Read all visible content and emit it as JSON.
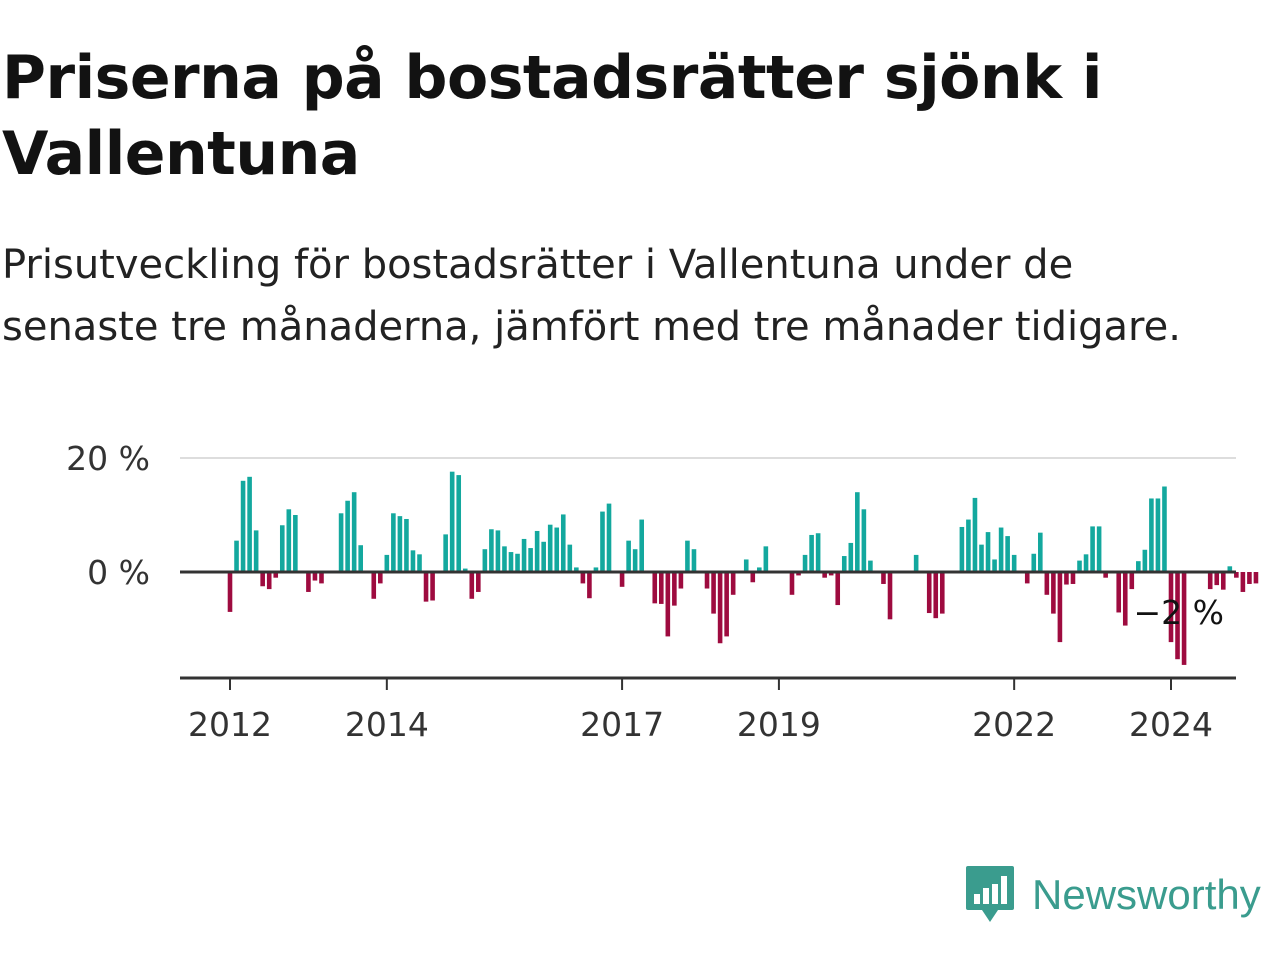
{
  "title": "Priserna på bostadsrätter sjönk i Vallentuna",
  "subtitle": "Prisutveckling för bostadsrätter i Vallentuna under de senaste tre månaderna, jämfört med tre månader tidigare.",
  "logo": {
    "text": "Newsworthy",
    "icon": "newsworthy-logo-icon",
    "color": "#3a9c8e"
  },
  "colors": {
    "positive": "#13a89e",
    "negative": "#9e0b3f",
    "axis": "#333333",
    "grid": "#dddddd"
  },
  "chart_data": {
    "type": "bar",
    "title": "",
    "xlabel": "",
    "ylabel": "",
    "ylim": [
      -18,
      20
    ],
    "grid": true,
    "y_ticks": [
      {
        "value": 20,
        "label": "20 %"
      },
      {
        "value": 0,
        "label": "0 %"
      }
    ],
    "x_ticks": [
      {
        "year": 2012,
        "label": "2012"
      },
      {
        "year": 2014,
        "label": "2014"
      },
      {
        "year": 2017,
        "label": "2017"
      },
      {
        "year": 2019,
        "label": "2019"
      },
      {
        "year": 2022,
        "label": "2022"
      },
      {
        "year": 2024,
        "label": "2024"
      }
    ],
    "start": "2012-01",
    "unit": "%",
    "values": [
      -7,
      5.5,
      16,
      16.7,
      7.3,
      -2.5,
      -3,
      -1,
      8.2,
      11,
      10,
      0,
      -3.5,
      -1.5,
      -2,
      0,
      0,
      10.3,
      12.5,
      14,
      4.7,
      0,
      -4.7,
      -2,
      3,
      10.3,
      9.8,
      9.3,
      3.8,
      3.1,
      -5.2,
      -5,
      0,
      6.6,
      17.6,
      17,
      0.6,
      -4.7,
      -3.5,
      4,
      7.5,
      7.3,
      4.5,
      3.5,
      3.2,
      5.8,
      4.2,
      7.2,
      5.3,
      8.3,
      7.8,
      10.1,
      4.8,
      0.8,
      -2,
      -4.6,
      0.8,
      10.6,
      12,
      0,
      -2.6,
      5.5,
      4,
      9.2,
      0,
      -5.5,
      -5.6,
      -11.3,
      -5.9,
      -2.9,
      5.5,
      4,
      0,
      -2.9,
      -7.3,
      -12.5,
      -11.3,
      -4,
      0,
      2.2,
      -1.8,
      0.8,
      4.5,
      0,
      0,
      0,
      -4,
      -0.6,
      3,
      6.5,
      6.8,
      -1,
      -0.6,
      -5.8,
      2.8,
      5.1,
      14,
      11,
      2,
      0,
      -2.1,
      -8.3,
      0,
      0,
      0,
      3,
      0,
      -7.2,
      -8.1,
      -7.3,
      0,
      0,
      7.9,
      9.2,
      13,
      4.8,
      7,
      2.2,
      7.8,
      6.3,
      3,
      0,
      -2,
      3.2,
      6.9,
      -4,
      -7.3,
      -12.3,
      -2.2,
      -2.1,
      2,
      3.1,
      8,
      8,
      -1,
      0,
      -7.1,
      -9.4,
      -3,
      1.9,
      3.9,
      12.9,
      12.9,
      15,
      -12.3,
      -15.3,
      -16.3,
      0,
      0,
      0,
      -3,
      -2.3,
      -3.1,
      1,
      -1,
      -3.5,
      -2.1,
      -2
    ],
    "last_value_label": "−2 %"
  }
}
